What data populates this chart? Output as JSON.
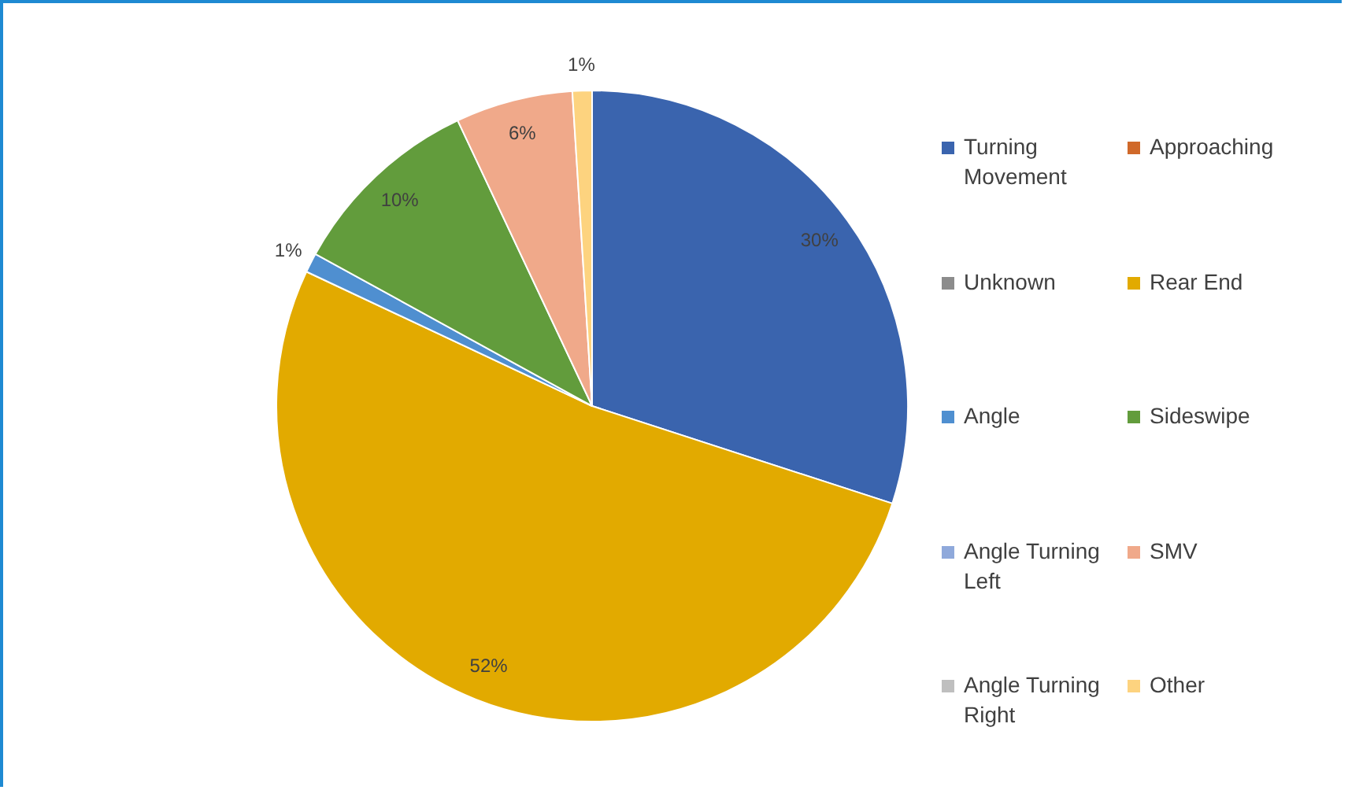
{
  "chart_data": {
    "type": "pie",
    "categories": [
      "Turning Movement",
      "Approaching",
      "Unknown",
      "Rear End",
      "Angle",
      "Sideswipe",
      "Angle Turning Left",
      "SMV",
      "Angle Turning Right",
      "Other"
    ],
    "values": [
      30,
      0,
      0,
      52,
      1,
      10,
      0,
      6,
      0,
      1
    ],
    "colors": [
      "#3a64ae",
      "#d0692a",
      "#8c8c8c",
      "#e2aa00",
      "#4f8fd0",
      "#629c3c",
      "#8fa9db",
      "#f0a98a",
      "#bfbfbf",
      "#fdd37f"
    ],
    "value_labels": [
      "30%",
      null,
      null,
      "52%",
      "1%",
      "10%",
      null,
      "6%",
      null,
      "1%"
    ],
    "legend": "right"
  }
}
